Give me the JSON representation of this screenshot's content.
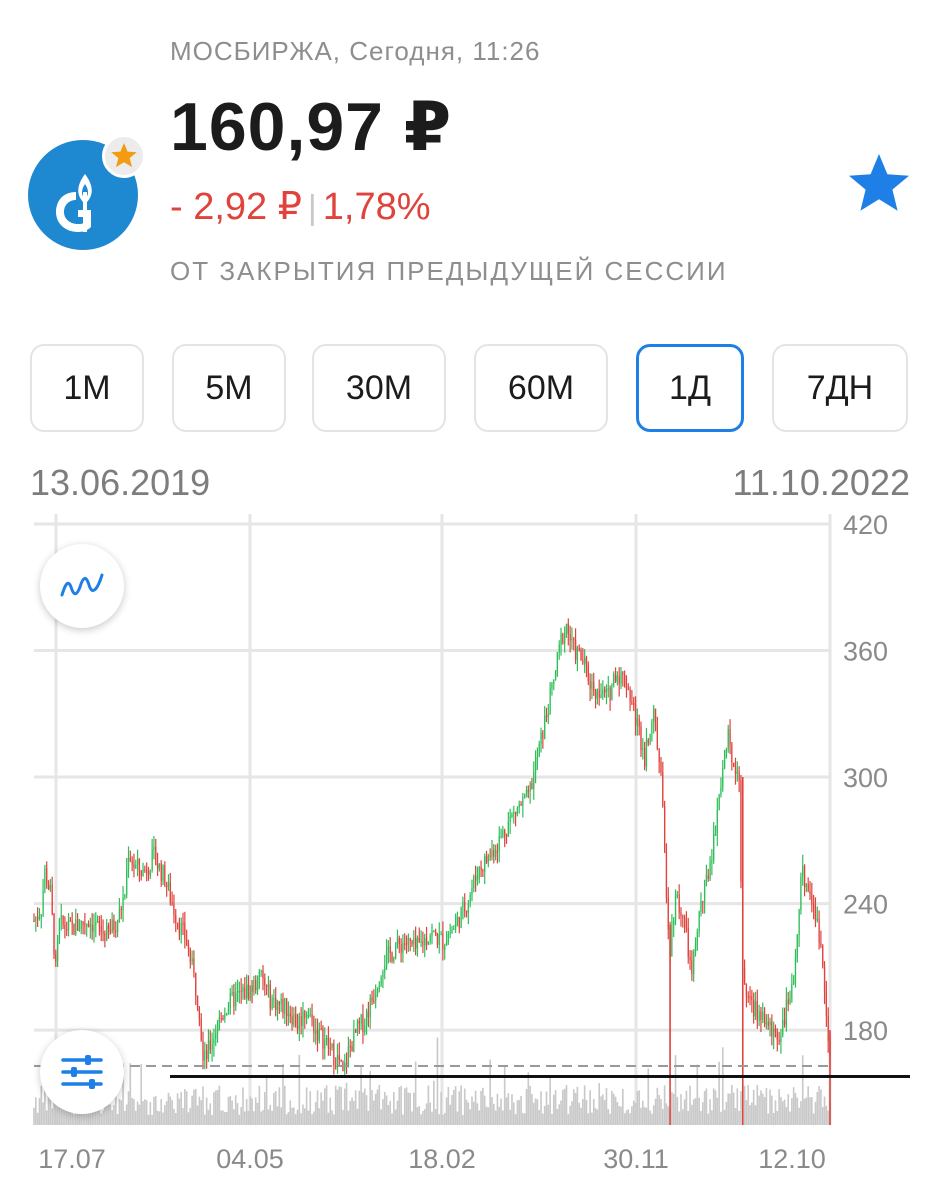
{
  "header": {
    "exchange_time": "МОСБИРЖА, Сегодня, 11:26",
    "price": "160,97 ₽",
    "change_abs": "- 2,92 ₽",
    "change_sep": "|",
    "change_pct": "1,78%",
    "note": "ОТ ЗАКРЫТИЯ ПРЕДЫДУЩЕЙ СЕССИИ"
  },
  "icons": {
    "logo": "gazprom-logo-icon",
    "badge": "star-badge-icon",
    "favorite": "favorite-star-icon",
    "chart_type": "line-chart-icon",
    "settings": "sliders-icon"
  },
  "colors": {
    "brand": "#1e88d0",
    "accent": "#1e7fe6",
    "down": "#e0423c",
    "up": "#2fbf5a",
    "badge_star": "#f39c12"
  },
  "tabs": [
    {
      "label": "1M",
      "active": false
    },
    {
      "label": "5M",
      "active": false
    },
    {
      "label": "30M",
      "active": false
    },
    {
      "label": "60M",
      "active": false
    },
    {
      "label": "1Д",
      "active": true
    },
    {
      "label": "7ДН",
      "active": false
    }
  ],
  "range": {
    "from": "13.06.2019",
    "to": "11.10.2022"
  },
  "chart_data": {
    "type": "candlestick",
    "ylim": [
      135,
      420
    ],
    "y_ticks": [
      "420",
      "360",
      "300",
      "240",
      "180"
    ],
    "x_ticks": [
      "17.07",
      "04.05",
      "18.02",
      "30.11",
      "12.10"
    ],
    "reference_line": 163,
    "current_price_line": 158,
    "trend": [
      [
        0,
        232
      ],
      [
        4,
        238
      ],
      [
        6,
        255
      ],
      [
        9,
        245
      ],
      [
        12,
        208
      ],
      [
        14,
        230
      ],
      [
        20,
        228
      ],
      [
        30,
        232
      ],
      [
        40,
        225
      ],
      [
        46,
        232
      ],
      [
        50,
        245
      ],
      [
        52,
        265
      ],
      [
        55,
        258
      ],
      [
        60,
        255
      ],
      [
        66,
        262
      ],
      [
        72,
        252
      ],
      [
        76,
        240
      ],
      [
        80,
        230
      ],
      [
        84,
        222
      ],
      [
        88,
        205
      ],
      [
        91,
        190
      ],
      [
        93,
        165
      ],
      [
        95,
        168
      ],
      [
        100,
        180
      ],
      [
        105,
        190
      ],
      [
        110,
        195
      ],
      [
        120,
        200
      ],
      [
        125,
        205
      ],
      [
        130,
        195
      ],
      [
        135,
        192
      ],
      [
        140,
        190
      ],
      [
        145,
        183
      ],
      [
        150,
        190
      ],
      [
        155,
        180
      ],
      [
        160,
        175
      ],
      [
        165,
        168
      ],
      [
        168,
        165
      ],
      [
        170,
        158
      ],
      [
        173,
        170
      ],
      [
        178,
        180
      ],
      [
        182,
        185
      ],
      [
        188,
        200
      ],
      [
        192,
        212
      ],
      [
        198,
        218
      ],
      [
        204,
        222
      ],
      [
        210,
        218
      ],
      [
        218,
        226
      ],
      [
        225,
        222
      ],
      [
        232,
        230
      ],
      [
        238,
        240
      ],
      [
        244,
        255
      ],
      [
        250,
        262
      ],
      [
        256,
        270
      ],
      [
        262,
        280
      ],
      [
        266,
        285
      ],
      [
        272,
        290
      ],
      [
        276,
        305
      ],
      [
        282,
        330
      ],
      [
        286,
        345
      ],
      [
        290,
        365
      ],
      [
        293,
        372
      ],
      [
        296,
        362
      ],
      [
        302,
        355
      ],
      [
        306,
        345
      ],
      [
        310,
        340
      ],
      [
        316,
        338
      ],
      [
        320,
        350
      ],
      [
        326,
        345
      ],
      [
        332,
        325
      ],
      [
        336,
        310
      ],
      [
        340,
        330
      ],
      [
        342,
        325
      ],
      [
        345,
        300
      ],
      [
        348,
        245
      ],
      [
        350,
        220
      ],
      [
        353,
        245
      ],
      [
        358,
        230
      ],
      [
        362,
        205
      ],
      [
        366,
        235
      ],
      [
        370,
        250
      ],
      [
        374,
        270
      ],
      [
        378,
        300
      ],
      [
        382,
        318
      ],
      [
        385,
        308
      ],
      [
        388,
        300
      ],
      [
        390,
        205
      ],
      [
        395,
        190
      ],
      [
        400,
        188
      ],
      [
        405,
        180
      ],
      [
        410,
        178
      ],
      [
        414,
        190
      ],
      [
        418,
        200
      ],
      [
        422,
        255
      ],
      [
        426,
        248
      ],
      [
        430,
        235
      ],
      [
        434,
        212
      ],
      [
        438,
        168
      ]
    ]
  }
}
